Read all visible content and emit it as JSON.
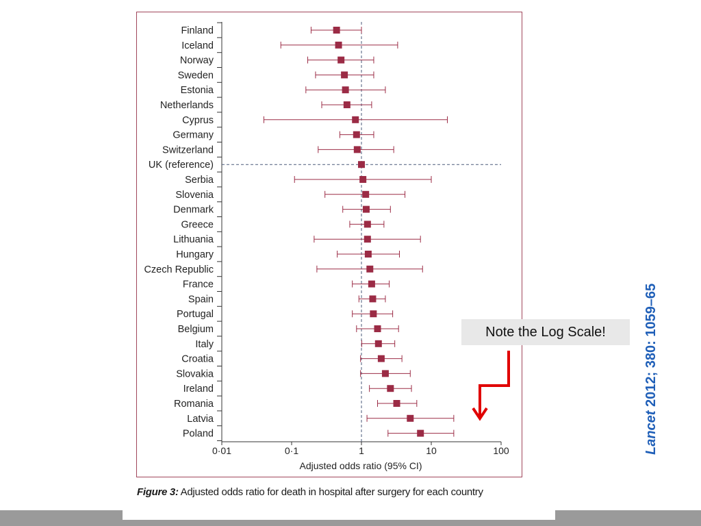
{
  "chart_data": {
    "type": "forest",
    "xlabel": "Adjusted odds ratio (95% CI)",
    "xscale": "log",
    "xlim": [
      0.01,
      100
    ],
    "xticks": [
      0.01,
      0.1,
      1,
      10,
      100
    ],
    "xtick_labels": [
      "0·01",
      "0·1",
      "1",
      "10",
      "100"
    ],
    "reference_line": 1,
    "rows": [
      {
        "country": "Finland",
        "or": 0.44,
        "lo": 0.19,
        "hi": 1.0
      },
      {
        "country": "Iceland",
        "or": 0.47,
        "lo": 0.07,
        "hi": 3.3
      },
      {
        "country": "Norway",
        "or": 0.51,
        "lo": 0.17,
        "hi": 1.5
      },
      {
        "country": "Sweden",
        "or": 0.57,
        "lo": 0.22,
        "hi": 1.5
      },
      {
        "country": "Estonia",
        "or": 0.59,
        "lo": 0.16,
        "hi": 2.2
      },
      {
        "country": "Netherlands",
        "or": 0.62,
        "lo": 0.27,
        "hi": 1.4
      },
      {
        "country": "Cyprus",
        "or": 0.82,
        "lo": 0.04,
        "hi": 17
      },
      {
        "country": "Germany",
        "or": 0.85,
        "lo": 0.49,
        "hi": 1.5
      },
      {
        "country": "Switzerland",
        "or": 0.87,
        "lo": 0.24,
        "hi": 2.9
      },
      {
        "country": "UK (reference)",
        "or": 1.0,
        "lo": null,
        "hi": null
      },
      {
        "country": "Serbia",
        "or": 1.05,
        "lo": 0.11,
        "hi": 10
      },
      {
        "country": "Slovenia",
        "or": 1.15,
        "lo": 0.3,
        "hi": 4.2
      },
      {
        "country": "Denmark",
        "or": 1.17,
        "lo": 0.54,
        "hi": 2.6
      },
      {
        "country": "Greece",
        "or": 1.22,
        "lo": 0.68,
        "hi": 2.1
      },
      {
        "country": "Lithuania",
        "or": 1.22,
        "lo": 0.21,
        "hi": 7.0
      },
      {
        "country": "Hungary",
        "or": 1.25,
        "lo": 0.45,
        "hi": 3.5
      },
      {
        "country": "Czech Republic",
        "or": 1.32,
        "lo": 0.23,
        "hi": 7.5
      },
      {
        "country": "France",
        "or": 1.4,
        "lo": 0.74,
        "hi": 2.5
      },
      {
        "country": "Spain",
        "or": 1.45,
        "lo": 0.92,
        "hi": 2.2
      },
      {
        "country": "Portugal",
        "or": 1.48,
        "lo": 0.74,
        "hi": 2.8
      },
      {
        "country": "Belgium",
        "or": 1.7,
        "lo": 0.85,
        "hi": 3.4
      },
      {
        "country": "Italy",
        "or": 1.75,
        "lo": 1.01,
        "hi": 3.0
      },
      {
        "country": "Croatia",
        "or": 1.92,
        "lo": 0.97,
        "hi": 3.8
      },
      {
        "country": "Slovakia",
        "or": 2.2,
        "lo": 0.97,
        "hi": 5.0
      },
      {
        "country": "Ireland",
        "or": 2.6,
        "lo": 1.3,
        "hi": 5.2
      },
      {
        "country": "Romania",
        "or": 3.2,
        "lo": 1.7,
        "hi": 6.2
      },
      {
        "country": "Latvia",
        "or": 5.0,
        "lo": 1.2,
        "hi": 21
      },
      {
        "country": "Poland",
        "or": 7.0,
        "lo": 2.4,
        "hi": 21
      }
    ],
    "marker_color": "#9b2b45",
    "line_color": "#9b2b45"
  },
  "caption": {
    "label": "Figure 3:",
    "text": " Adjusted odds ratio for death in hospital after surgery for each country"
  },
  "note": "Note the Log Scale!",
  "citation": {
    "journal": "Lancet",
    "details": " 2012; 380: 1059–65"
  },
  "colors": {
    "frame": "#a0455a",
    "arrow": "#e00000",
    "citation": "#1f5fb8",
    "footer": "#9a9a9a"
  }
}
